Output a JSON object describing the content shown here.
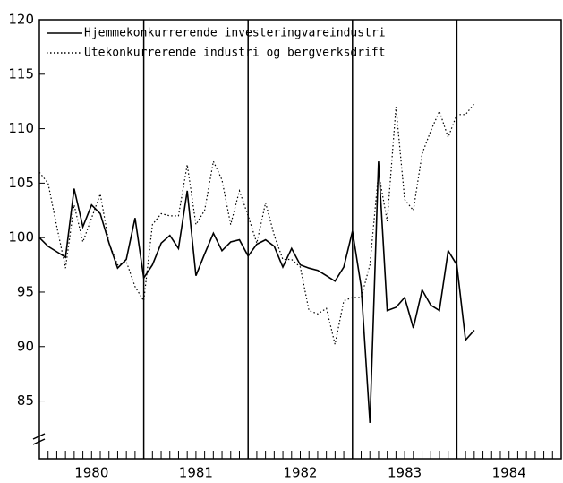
{
  "chart_data": {
    "type": "line",
    "x": [
      1980,
      1980.083,
      1980.167,
      1980.25,
      1980.333,
      1980.417,
      1980.5,
      1980.583,
      1980.667,
      1980.75,
      1980.833,
      1980.917,
      1981,
      1981.083,
      1981.167,
      1981.25,
      1981.333,
      1981.417,
      1981.5,
      1981.583,
      1981.667,
      1981.75,
      1981.833,
      1981.917,
      1982,
      1982.083,
      1982.167,
      1982.25,
      1982.333,
      1982.417,
      1982.5,
      1982.583,
      1982.667,
      1982.75,
      1982.833,
      1982.917,
      1983,
      1983.083,
      1983.167,
      1983.25,
      1983.333,
      1983.417,
      1983.5,
      1983.583,
      1983.667,
      1983.75,
      1983.833,
      1983.917,
      1984,
      1984.083,
      1984.167
    ],
    "series": [
      {
        "name": "Hjemmekonkurrerende investeringvareindustri",
        "color": "#000000",
        "dash": "solid",
        "values": [
          100,
          99.2,
          98.7,
          98.2,
          104.5,
          101,
          103,
          102.2,
          99.5,
          97.2,
          98,
          101.8,
          96.3,
          97.5,
          99.5,
          100.2,
          99,
          104.3,
          96.5,
          98.5,
          100.4,
          98.8,
          99.6,
          99.8,
          98.3,
          99.4,
          99.8,
          99.2,
          97.3,
          99,
          97.5,
          97.2,
          97,
          96.5,
          96,
          97.3,
          100.6,
          95.5,
          83,
          107,
          93.3,
          93.6,
          94.5,
          91.7,
          95.2,
          93.8,
          93.3,
          98.8,
          97.5,
          90.6,
          91.5
        ]
      },
      {
        "name": "Utekonkurrerende industri og bergverksdrift",
        "color": "#000000",
        "dash": "dotted",
        "values": [
          106,
          105,
          101,
          97.2,
          103,
          99.6,
          101.8,
          104,
          99.5,
          97.5,
          97.8,
          95.5,
          94.2,
          101.2,
          102.2,
          102,
          102,
          106.7,
          101.2,
          102.5,
          107,
          105.3,
          101.2,
          104.3,
          102,
          99.5,
          103.2,
          100.2,
          98,
          98,
          97.3,
          93.3,
          93,
          93.5,
          90.2,
          94.2,
          94.5,
          94.5,
          97.5,
          106,
          101.5,
          112,
          103.5,
          102.5,
          107.7,
          109.8,
          111.6,
          109.2,
          111.3,
          111.3,
          112.3
        ]
      }
    ],
    "xlim": [
      1980,
      1985
    ],
    "xticks": [
      1980,
      1981,
      1982,
      1983,
      1984
    ],
    "ylim": [
      79.7,
      120
    ],
    "yticks": [
      85,
      90,
      95,
      100,
      105,
      110,
      115,
      120
    ],
    "legend": "upper left"
  }
}
